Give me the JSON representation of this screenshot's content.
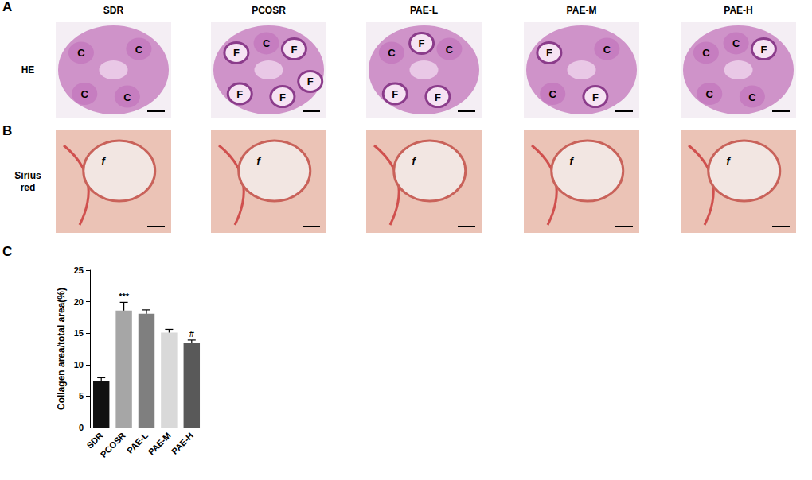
{
  "panel_labels": [
    "A",
    "B",
    "C"
  ],
  "columns": [
    "SDR",
    "PCOSR",
    "PAE-L",
    "PAE-M",
    "PAE-H"
  ],
  "rows": [
    {
      "label": "HE",
      "annotations": [
        [
          "C",
          "C",
          "C",
          "C"
        ],
        [
          "F",
          "F",
          "F",
          "F",
          "C",
          "F"
        ],
        [
          "C",
          "C",
          "F",
          "F",
          "F"
        ],
        [
          "F",
          "C",
          "C",
          "F"
        ],
        [
          "C",
          "F",
          "C",
          "C",
          "C"
        ]
      ]
    },
    {
      "label": "Sirius red",
      "annotations": [
        [
          "f"
        ],
        [
          "f"
        ],
        [
          "f"
        ],
        [
          "f"
        ],
        [
          "f"
        ]
      ]
    }
  ],
  "chart_data": {
    "type": "bar",
    "categories": [
      "SDR",
      "PCOSR",
      "PAE-L",
      "PAE-M",
      "PAE-H"
    ],
    "values": [
      7.4,
      18.6,
      18.1,
      15.1,
      13.4
    ],
    "errors": [
      0.5,
      1.3,
      0.6,
      0.5,
      0.5
    ],
    "significance": [
      null,
      "***",
      null,
      null,
      "#"
    ],
    "colors": [
      "#111111",
      "#a6a6a6",
      "#7f7f7f",
      "#d9d9d9",
      "#595959"
    ],
    "y_label": "Collagen area/total area(%)",
    "ylim": [
      0,
      25
    ],
    "yticks": [
      0,
      5,
      10,
      15,
      20,
      25
    ],
    "grid": false
  }
}
